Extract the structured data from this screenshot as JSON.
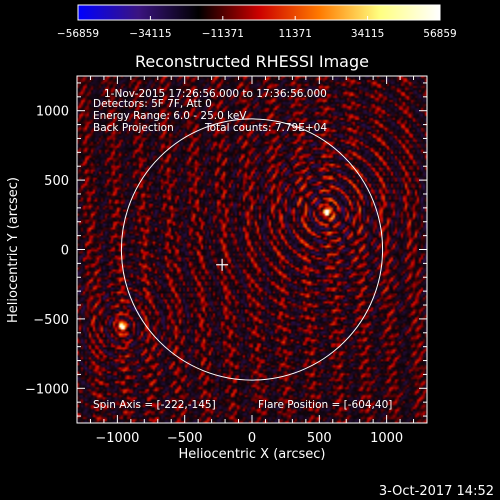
{
  "chart_data": {
    "type": "heatmap",
    "title": "Reconstructed RHESSI Image",
    "xlabel": "Heliocentric X (arcsec)",
    "ylabel": "Heliocentric Y (arcsec)",
    "xlim": [
      -1300,
      1300
    ],
    "ylim": [
      -1250,
      1250
    ],
    "xticks": [
      -1000,
      -500,
      0,
      500,
      1000
    ],
    "xtick_labels": [
      "−1000",
      "−500",
      "0",
      "500",
      "1000"
    ],
    "yticks": [
      -1000,
      -500,
      0,
      500,
      1000
    ],
    "ytick_labels": [
      "−1000",
      "−500",
      "0",
      "500",
      "1000"
    ],
    "colorbar": {
      "min": -56859,
      "max": 56859,
      "ticks": [
        -56859,
        -34115,
        -11371,
        11371,
        34115,
        56859
      ],
      "tick_labels": [
        "−56859",
        "−34115",
        "−11371",
        "11371",
        "34115",
        "56859"
      ],
      "colors": [
        "#0000ff",
        "#3a1480",
        "#000000",
        "#cc0000",
        "#ff7a00",
        "#ffff80",
        "#ffffff"
      ]
    },
    "sources": [
      {
        "x": 555,
        "y": 270,
        "relative_intensity": 1.0
      },
      {
        "x": -965,
        "y": -555,
        "relative_intensity": 0.7
      }
    ],
    "solar_disk_radius": 970,
    "disk_center_marker": {
      "x": -222,
      "y": -110
    },
    "annotations": {
      "time_range": "1-Nov-2015 17:26:56.000 to 17:36:56.000",
      "detectors": "Detectors: 5F 7F, Att 0",
      "energy_range": "Energy Range: 6.0 - 25.0 keV",
      "method": "Back Projection",
      "total_counts": "Total counts: 7.79E+04",
      "spin_axis": "Spin Axis = [-222,-145]",
      "flare_position": "Flare Position = [-604,40]"
    }
  },
  "footer_timestamp": "3-Oct-2017 14:52"
}
